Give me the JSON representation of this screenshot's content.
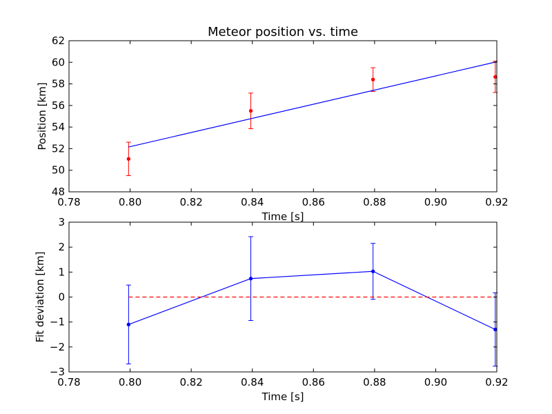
{
  "chart_data": [
    {
      "type": "line",
      "title": "Meteor position vs. time",
      "xlabel": "Time [s]",
      "ylabel": "Position [km]",
      "xlim": [
        0.78,
        0.92
      ],
      "ylim": [
        48,
        62
      ],
      "xticks": [
        "0.78",
        "0.80",
        "0.82",
        "0.84",
        "0.86",
        "0.88",
        "0.90",
        "0.92"
      ],
      "yticks": [
        "48",
        "50",
        "52",
        "54",
        "56",
        "58",
        "60",
        "62"
      ],
      "grid": false,
      "colors": {
        "points": "#ff0000",
        "fit": "#0000ff"
      },
      "series": [
        {
          "style": "errorbar-points",
          "color": "#ff0000",
          "x": [
            0.7995,
            0.8395,
            0.8795,
            0.9195
          ],
          "y": [
            51.05,
            55.5,
            58.4,
            58.65
          ],
          "err": [
            1.55,
            1.65,
            1.1,
            1.45
          ]
        },
        {
          "style": "line",
          "color": "#0000ff",
          "x": [
            0.7995,
            0.92
          ],
          "y": [
            52.15,
            60.05
          ]
        }
      ]
    },
    {
      "type": "line",
      "title": "",
      "xlabel": "Time [s]",
      "ylabel": "Fit deviation [km]",
      "xlim": [
        0.78,
        0.92
      ],
      "ylim": [
        -3,
        3
      ],
      "xticks": [
        "0.78",
        "0.80",
        "0.82",
        "0.84",
        "0.86",
        "0.88",
        "0.90",
        "0.92"
      ],
      "yticks": [
        "−3",
        "−2",
        "−1",
        "0",
        "1",
        "2",
        "3"
      ],
      "grid": false,
      "colors": {
        "deviation": "#0000ff",
        "reference": "#ff0000"
      },
      "series": [
        {
          "style": "errorbar-line",
          "color": "#0000ff",
          "x": [
            0.7995,
            0.8395,
            0.8795,
            0.9195
          ],
          "y": [
            -1.1,
            0.74,
            1.03,
            -1.3
          ],
          "err": [
            1.58,
            1.68,
            1.12,
            1.47
          ]
        },
        {
          "style": "dashed-reference",
          "color": "#ff0000",
          "x": [
            0.7995,
            0.92
          ],
          "y": [
            0,
            0
          ]
        }
      ]
    }
  ]
}
